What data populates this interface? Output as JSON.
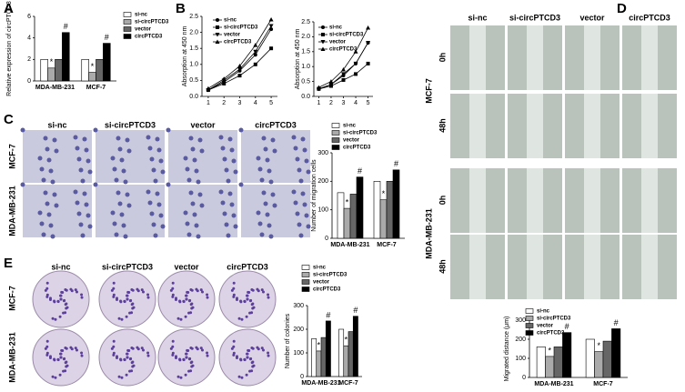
{
  "panels": {
    "A": "A",
    "B": "B",
    "C": "C",
    "D": "D",
    "E": "E"
  },
  "images": {
    "C": {
      "columns": [
        "si-nc",
        "si-circPTCD3",
        "vector",
        "circPTCD3"
      ],
      "rows": [
        "MCF-7",
        "MDA-MB-231"
      ]
    },
    "D": {
      "columns": [
        "si-nc",
        "si-circPTCD3",
        "vector",
        "circPTCD3"
      ],
      "rows": [
        "MCF-7",
        "MDA-MB-231"
      ],
      "times": [
        "0h",
        "48h"
      ]
    },
    "E": {
      "columns": [
        "si-nc",
        "si-circPTCD3",
        "vector",
        "circPTCD3"
      ],
      "rows": [
        "MCF-7",
        "MDA-MB-231"
      ]
    }
  },
  "chart_data": [
    {
      "type": "bar",
      "y_label": "Relative expression of circPTCD3",
      "categories": [
        "MDA-MB-231",
        "MCF-7"
      ],
      "ylim": [
        0,
        6
      ],
      "yticks": [
        0,
        2,
        4,
        6
      ],
      "series": [
        {
          "name": "si-nc",
          "color": "#ffffff",
          "values": [
            2,
            2
          ]
        },
        {
          "name": "si-circPTCD3",
          "color": "#aaaaaa",
          "values": [
            1.2,
            0.8
          ]
        },
        {
          "name": "vector",
          "color": "#666666",
          "values": [
            2,
            2
          ]
        },
        {
          "name": "circPTCD3",
          "color": "#000000",
          "values": [
            4.5,
            3.5
          ]
        }
      ],
      "annotations": [
        {
          "text": "*",
          "series": 1,
          "category": 0
        },
        {
          "text": "*",
          "series": 1,
          "category": 1
        },
        {
          "text": "#",
          "series": 3,
          "category": 0
        },
        {
          "text": "#",
          "series": 3,
          "category": 1
        }
      ]
    },
    {
      "type": "line",
      "y_label": "Absorption at 450 nm",
      "x": [
        1,
        2,
        3,
        4,
        5
      ],
      "xlim": [
        0.6,
        5.4
      ],
      "xticks": [
        1,
        2,
        3,
        4,
        5
      ],
      "ylim": [
        0,
        2.5
      ],
      "yticks": [
        {
          "value": 0,
          "label": "0.0"
        },
        0.5,
        {
          "value": 1,
          "label": "1.0"
        },
        1.5,
        {
          "value": 2,
          "label": "2.0"
        },
        2.5
      ],
      "series": [
        {
          "name": "si-nc",
          "color": "#000000",
          "values": [
            0.2,
            0.45,
            0.8,
            1.3,
            2.1
          ]
        },
        {
          "name": "si-circPTCD3",
          "color": "#000000",
          "values": [
            0.2,
            0.4,
            0.65,
            1.0,
            1.5
          ]
        },
        {
          "name": "vector",
          "color": "#000000",
          "values": [
            0.2,
            0.5,
            0.85,
            1.4,
            2.2
          ]
        },
        {
          "name": "circPTCD3",
          "color": "#000000",
          "values": [
            0.25,
            0.55,
            0.95,
            1.6,
            2.4
          ]
        }
      ]
    },
    {
      "type": "line",
      "y_label": "Absorption at 450 nm",
      "x": [
        1,
        2,
        3,
        4,
        5
      ],
      "xlim": [
        0.6,
        5.4
      ],
      "xticks": [
        1,
        2,
        3,
        4,
        5
      ],
      "ylim": [
        0,
        2.5
      ],
      "yticks": [
        {
          "value": 0,
          "label": "0.0"
        },
        0.5,
        {
          "value": 1,
          "label": "1.0"
        },
        1.5,
        {
          "value": 2,
          "label": "2.0"
        },
        2.5
      ],
      "series": [
        {
          "name": "si-nc",
          "color": "#000000",
          "values": [
            0.25,
            0.4,
            0.7,
            1.1,
            1.8
          ]
        },
        {
          "name": "si-circPTCD3",
          "color": "#000000",
          "values": [
            0.25,
            0.35,
            0.55,
            0.75,
            1.1
          ]
        },
        {
          "name": "vector",
          "color": "#000000",
          "values": [
            0.25,
            0.4,
            0.75,
            1.1,
            1.8
          ]
        },
        {
          "name": "circPTCD3",
          "color": "#000000",
          "values": [
            0.3,
            0.5,
            0.9,
            1.5,
            2.3
          ]
        }
      ]
    },
    {
      "type": "bar",
      "y_label": "Number of migration cells",
      "categories": [
        "MDA-MB-231",
        "MCF-7"
      ],
      "ylim": [
        0,
        300
      ],
      "yticks": [
        0,
        100,
        200,
        300
      ],
      "series": [
        {
          "name": "si-nc",
          "color": "#ffffff",
          "values": [
            160,
            200
          ]
        },
        {
          "name": "si-circPTCD3",
          "color": "#aaaaaa",
          "values": [
            105,
            135
          ]
        },
        {
          "name": "vector",
          "color": "#666666",
          "values": [
            155,
            200
          ]
        },
        {
          "name": "circPTCD3",
          "color": "#000000",
          "values": [
            215,
            240
          ]
        }
      ],
      "annotations": [
        {
          "text": "*",
          "series": 1,
          "category": 0
        },
        {
          "text": "*",
          "series": 1,
          "category": 1
        },
        {
          "text": "#",
          "series": 3,
          "category": 0
        },
        {
          "text": "#",
          "series": 3,
          "category": 1
        }
      ]
    },
    {
      "type": "bar",
      "y_label": "Migrated distance (μm)",
      "categories": [
        "MDA-MB-231",
        "MCF-7"
      ],
      "ylim": [
        0,
        300
      ],
      "yticks": [
        0,
        100,
        200,
        300
      ],
      "series": [
        {
          "name": "si-nc",
          "color": "#ffffff",
          "values": [
            160,
            200
          ]
        },
        {
          "name": "si-circPTCD3",
          "color": "#aaaaaa",
          "values": [
            110,
            135
          ]
        },
        {
          "name": "vector",
          "color": "#666666",
          "values": [
            160,
            190
          ]
        },
        {
          "name": "circPTCD3",
          "color": "#000000",
          "values": [
            235,
            255
          ]
        }
      ],
      "annotations": [
        {
          "text": "*",
          "series": 1,
          "category": 0
        },
        {
          "text": "*",
          "series": 1,
          "category": 1
        },
        {
          "text": "#",
          "series": 3,
          "category": 0
        },
        {
          "text": "#",
          "series": 3,
          "category": 1
        }
      ]
    },
    {
      "type": "bar",
      "y_label": "Number of colonies",
      "categories": [
        "MDA-MB-231",
        "MCF-7"
      ],
      "ylim": [
        0,
        300
      ],
      "yticks": [
        0,
        100,
        200,
        300
      ],
      "series": [
        {
          "name": "si-nc",
          "color": "#ffffff",
          "values": [
            160,
            200
          ]
        },
        {
          "name": "si-circPTCD3",
          "color": "#aaaaaa",
          "values": [
            108,
            130
          ]
        },
        {
          "name": "vector",
          "color": "#666666",
          "values": [
            165,
            190
          ]
        },
        {
          "name": "circPTCD3",
          "color": "#000000",
          "values": [
            235,
            255
          ]
        }
      ],
      "annotations": [
        {
          "text": "*",
          "series": 1,
          "category": 0
        },
        {
          "text": "*",
          "series": 1,
          "category": 1
        },
        {
          "text": "#",
          "series": 3,
          "category": 0
        },
        {
          "text": "#",
          "series": 3,
          "category": 1
        }
      ]
    }
  ]
}
